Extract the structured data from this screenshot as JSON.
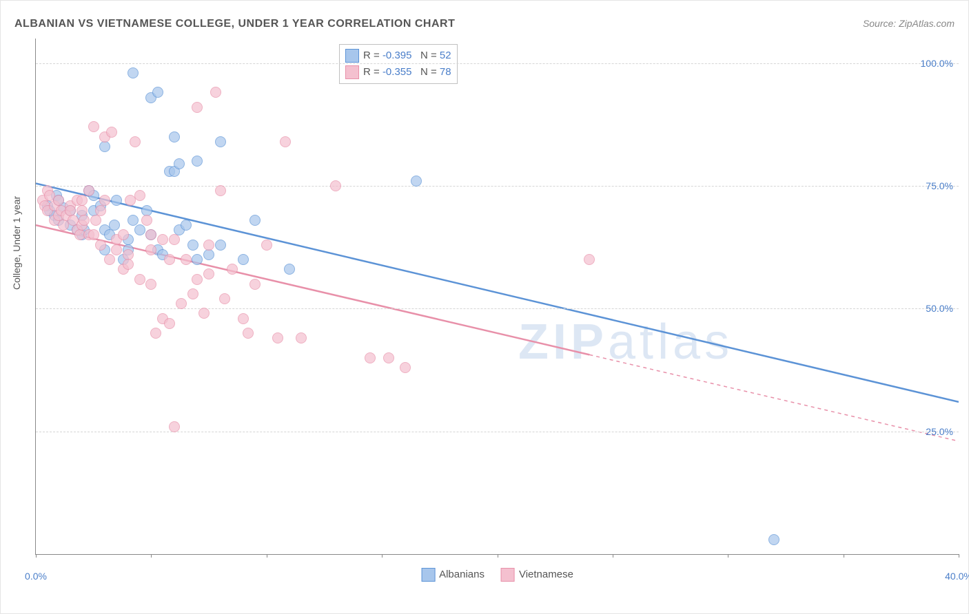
{
  "title": "ALBANIAN VS VIETNAMESE COLLEGE, UNDER 1 YEAR CORRELATION CHART",
  "source": "Source: ZipAtlas.com",
  "ylabel": "College, Under 1 year",
  "watermark": {
    "bold": "ZIP",
    "rest": "atlas"
  },
  "chart": {
    "type": "scatter",
    "xlim": [
      0,
      40
    ],
    "ylim": [
      0,
      105
    ],
    "ytick_values": [
      25,
      50,
      75,
      100
    ],
    "ytick_labels": [
      "25.0%",
      "50.0%",
      "75.0%",
      "100.0%"
    ],
    "xtick_values": [
      0,
      5,
      10,
      15,
      20,
      25,
      30,
      35,
      40
    ],
    "xtick_show_labels": [
      0,
      40
    ],
    "xtick_labels": {
      "0": "0.0%",
      "40": "40.0%"
    },
    "background_color": "#ffffff",
    "grid_color": "#d5d5d5",
    "marker_radius": 8,
    "marker_border_width": 1.5,
    "marker_fill_opacity": 0.35,
    "line_width": 2.5
  },
  "series": [
    {
      "name": "Albanians",
      "label": "Albanians",
      "color_border": "#5c93d6",
      "color_fill": "#a7c6ec",
      "R": "-0.395",
      "N": "52",
      "trendline": {
        "x1": 0,
        "y1": 75.5,
        "x2": 40,
        "y2": 31,
        "dashed_from_x": null
      },
      "points": [
        [
          0.5,
          71
        ],
        [
          0.6,
          70
        ],
        [
          0.8,
          69
        ],
        [
          0.9,
          73
        ],
        [
          1.0,
          72
        ],
        [
          1.0,
          68
        ],
        [
          1.2,
          70.5
        ],
        [
          1.5,
          70
        ],
        [
          1.5,
          67
        ],
        [
          1.8,
          66
        ],
        [
          2.0,
          69
        ],
        [
          2.0,
          65
        ],
        [
          2.1,
          66
        ],
        [
          2.3,
          74
        ],
        [
          2.5,
          73
        ],
        [
          2.5,
          70
        ],
        [
          2.8,
          71
        ],
        [
          3.0,
          66
        ],
        [
          3.0,
          62
        ],
        [
          3.2,
          65
        ],
        [
          3.4,
          67
        ],
        [
          3.5,
          72
        ],
        [
          3.8,
          60
        ],
        [
          4.0,
          64
        ],
        [
          4.0,
          62
        ],
        [
          4.2,
          68
        ],
        [
          4.2,
          98
        ],
        [
          4.5,
          66
        ],
        [
          4.8,
          70
        ],
        [
          5.0,
          65
        ],
        [
          5.0,
          93
        ],
        [
          5.3,
          62
        ],
        [
          5.3,
          94
        ],
        [
          5.5,
          61
        ],
        [
          5.8,
          78
        ],
        [
          6.0,
          78
        ],
        [
          6.0,
          85
        ],
        [
          6.2,
          79.5
        ],
        [
          6.2,
          66
        ],
        [
          6.5,
          67
        ],
        [
          6.8,
          63
        ],
        [
          7.0,
          60
        ],
        [
          7.0,
          80
        ],
        [
          7.5,
          61
        ],
        [
          8.0,
          84
        ],
        [
          8.0,
          63
        ],
        [
          9.0,
          60
        ],
        [
          9.5,
          68
        ],
        [
          11.0,
          58
        ],
        [
          16.5,
          76
        ],
        [
          32.0,
          3
        ],
        [
          3.0,
          83
        ]
      ]
    },
    {
      "name": "Vietnamese",
      "label": "Vietnamese",
      "color_border": "#e890a9",
      "color_fill": "#f4c0cf",
      "R": "-0.355",
      "N": "78",
      "trendline": {
        "x1": 0,
        "y1": 67,
        "x2": 40,
        "y2": 23,
        "dashed_from_x": 24
      },
      "points": [
        [
          0.3,
          72
        ],
        [
          0.4,
          71
        ],
        [
          0.5,
          74
        ],
        [
          0.5,
          70
        ],
        [
          0.6,
          73
        ],
        [
          0.8,
          71
        ],
        [
          0.8,
          68
        ],
        [
          1.0,
          69
        ],
        [
          1.0,
          72
        ],
        [
          1.1,
          70
        ],
        [
          1.2,
          67
        ],
        [
          1.3,
          69
        ],
        [
          1.5,
          71
        ],
        [
          1.5,
          70
        ],
        [
          1.6,
          68
        ],
        [
          1.8,
          72
        ],
        [
          1.8,
          66
        ],
        [
          1.9,
          65
        ],
        [
          2.0,
          67
        ],
        [
          2.0,
          70
        ],
        [
          2.0,
          72
        ],
        [
          2.1,
          68
        ],
        [
          2.3,
          65
        ],
        [
          2.3,
          74
        ],
        [
          2.5,
          65
        ],
        [
          2.5,
          87
        ],
        [
          2.6,
          68
        ],
        [
          2.8,
          70
        ],
        [
          2.8,
          63
        ],
        [
          3.0,
          72
        ],
        [
          3.0,
          85
        ],
        [
          3.2,
          60
        ],
        [
          3.3,
          86
        ],
        [
          3.5,
          62
        ],
        [
          3.5,
          64
        ],
        [
          3.8,
          58
        ],
        [
          3.8,
          65
        ],
        [
          4.0,
          61
        ],
        [
          4.0,
          59
        ],
        [
          4.1,
          72
        ],
        [
          4.3,
          84
        ],
        [
          4.5,
          73
        ],
        [
          4.5,
          56
        ],
        [
          4.8,
          68
        ],
        [
          5.0,
          62
        ],
        [
          5.0,
          65
        ],
        [
          5.0,
          55
        ],
        [
          5.2,
          45
        ],
        [
          5.5,
          48
        ],
        [
          5.5,
          64
        ],
        [
          5.8,
          47
        ],
        [
          5.8,
          60
        ],
        [
          6.0,
          64
        ],
        [
          6.0,
          26
        ],
        [
          6.3,
          51
        ],
        [
          6.5,
          60
        ],
        [
          6.8,
          53
        ],
        [
          7.0,
          91
        ],
        [
          7.0,
          56
        ],
        [
          7.3,
          49
        ],
        [
          7.5,
          57
        ],
        [
          7.5,
          63
        ],
        [
          7.8,
          94
        ],
        [
          8.0,
          74
        ],
        [
          8.2,
          52
        ],
        [
          8.5,
          58
        ],
        [
          9.0,
          48
        ],
        [
          9.2,
          45
        ],
        [
          9.5,
          55
        ],
        [
          10.0,
          63
        ],
        [
          10.5,
          44
        ],
        [
          10.8,
          84
        ],
        [
          11.5,
          44
        ],
        [
          13.0,
          75
        ],
        [
          14.5,
          40
        ],
        [
          15.3,
          40
        ],
        [
          16.0,
          38
        ],
        [
          24.0,
          60
        ]
      ]
    }
  ],
  "legend_series": [
    {
      "label": "Albanians",
      "fill": "#a7c6ec",
      "border": "#5c93d6"
    },
    {
      "label": "Vietnamese",
      "fill": "#f4c0cf",
      "border": "#e890a9"
    }
  ]
}
